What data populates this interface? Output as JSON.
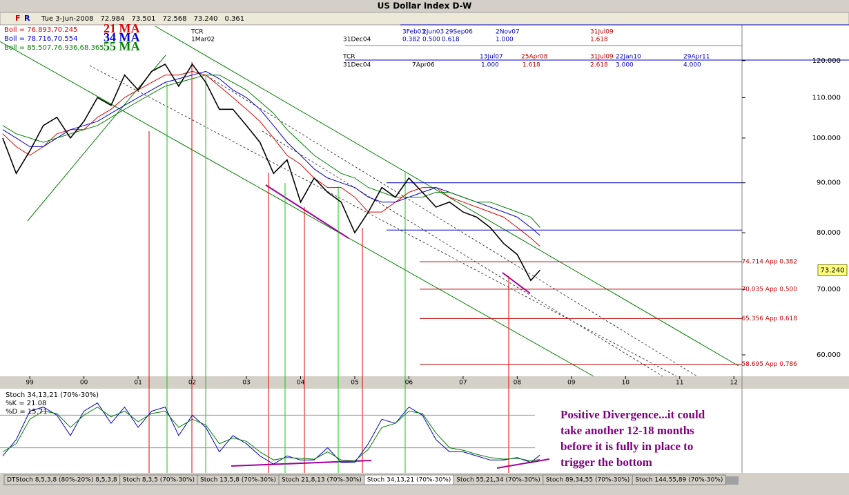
{
  "window_title": "US Dollar Index  D-W",
  "header": [
    "Tue 3-Jun-2008",
    "72.984",
    "73.501",
    "72.568",
    "73.240",
    "0.361"
  ],
  "buttons": [
    "F",
    "R"
  ],
  "tabs": [
    "DTStoch 8,5,3,8 (80%-20%) 8,5,3,8",
    "Stoch 8,3,5 (70%-30%)",
    "Stoch 13,5,8 (70%-30%)",
    "Stoch 21,8,13 (70%-30%)",
    "Stoch 34,13,21 (70%-30%)",
    "Stoch 55,21,34 (70%-30%)",
    "Stoch 89,34,55 (70%-30%)",
    "Stoch 144,55,89 (70%-30%)"
  ],
  "chart_data": [
    {
      "type": "line",
      "log_scale": true,
      "color": "#000000",
      "x": [
        1998.5,
        1998.75,
        1999,
        1999.25,
        1999.5,
        1999.75,
        2000,
        2000.25,
        2000.5,
        2000.75,
        2001,
        2001.25,
        2001.5,
        2001.75,
        2002,
        2002.25,
        2002.5,
        2002.75,
        2003,
        2003.25,
        2003.5,
        2003.75,
        2004,
        2004.25,
        2004.5,
        2004.75,
        2005,
        2005.25,
        2005.5,
        2005.75,
        2006,
        2006.25,
        2006.5,
        2006.75,
        2007,
        2007.25,
        2007.5,
        2007.75,
        2008,
        2008.25,
        2008.42
      ],
      "values": [
        100,
        92,
        97,
        103,
        105,
        100,
        104,
        110,
        108,
        116,
        112,
        117,
        119,
        113,
        119,
        114,
        107,
        107,
        103,
        99,
        92,
        95,
        86,
        91,
        88,
        86,
        80,
        84,
        89,
        87,
        91,
        88,
        85,
        86,
        84,
        83,
        81,
        78,
        76,
        71.5,
        73.24
      ],
      "series": [
        {
          "name": "21 MA",
          "boll": "Boll = 76.893,70.245",
          "color": "#e00000",
          "values": [
            101,
            98,
            96,
            98,
            101,
            102,
            102,
            105,
            107,
            110,
            112,
            114,
            116,
            116,
            117,
            116,
            113,
            110,
            107,
            104,
            100,
            96,
            94,
            91,
            89,
            89,
            87,
            84,
            84,
            86,
            88,
            89,
            89,
            87,
            86,
            85,
            84,
            83,
            81,
            79,
            77.5
          ]
        },
        {
          "name": "34 MA",
          "boll": "Boll = 78.716,70.554",
          "color": "#0000d0",
          "values": [
            102,
            100,
            98,
            98,
            100,
            102,
            103,
            104,
            106,
            108,
            110,
            112,
            114,
            115,
            116,
            117,
            115,
            112,
            110,
            107,
            103,
            99,
            96,
            93,
            91,
            90,
            89,
            87,
            86,
            86,
            87,
            88,
            89,
            88,
            87,
            86,
            85,
            84,
            83,
            81,
            79.5
          ]
        },
        {
          "name": "55 MA",
          "boll": "Boll = 85.507,76.936,68.365",
          "color": "#008000",
          "values": [
            103,
            101,
            100,
            99,
            100,
            101,
            102,
            103,
            105,
            107,
            109,
            111,
            113,
            114,
            115,
            116,
            116,
            114,
            112,
            109,
            106,
            102,
            99,
            96,
            94,
            92,
            91,
            89,
            88,
            87,
            87,
            87,
            88,
            88,
            87,
            86,
            86,
            85,
            84,
            83,
            81
          ]
        }
      ],
      "xlim": [
        1998.45,
        2012.15
      ],
      "xticks": [
        {
          "value": 1999,
          "label": "99"
        },
        {
          "value": 2000,
          "label": "00"
        },
        {
          "value": 2001,
          "label": "01"
        },
        {
          "value": 2002,
          "label": "02"
        },
        {
          "value": 2003,
          "label": "03"
        },
        {
          "value": 2004,
          "label": "04"
        },
        {
          "value": 2005,
          "label": "05"
        },
        {
          "value": 2006,
          "label": "06"
        },
        {
          "value": 2007,
          "label": "07"
        },
        {
          "value": 2008,
          "label": "08"
        },
        {
          "value": 2009,
          "label": "09"
        },
        {
          "value": 2010,
          "label": "10"
        },
        {
          "value": 2011,
          "label": "11"
        },
        {
          "value": 2012,
          "label": "12"
        }
      ],
      "ylim": [
        57.05,
        134
      ],
      "yticks": [
        {
          "value": 60,
          "label": "60.000"
        },
        {
          "value": 70,
          "label": "70.000"
        },
        {
          "value": 80,
          "label": "80.000"
        },
        {
          "value": 90,
          "label": "90.000"
        },
        {
          "value": 100,
          "label": "100.000"
        },
        {
          "value": 110,
          "label": "110.000"
        },
        {
          "value": 120,
          "label": "120.000"
        }
      ],
      "last": {
        "value": 73.24,
        "label": "73.240"
      },
      "levels": [
        {
          "value": 74.714,
          "label": "74.714 App 0.382"
        },
        {
          "value": 70.035,
          "label": "70.035 App 0.500"
        },
        {
          "value": 65.356,
          "label": "65.356 App 0.618"
        },
        {
          "value": 58.695,
          "label": "58.695 App 0.786"
        }
      ],
      "level_color": "#c00000",
      "hlines": [
        90,
        80.5
      ],
      "hline_color": "#0000c0",
      "cycle_labels": [
        {
          "text": "TCR",
          "color": "#000000"
        },
        {
          "text": "1Mar02",
          "color": "#000000"
        },
        {
          "text": "31Dec04",
          "color": "#000000"
        },
        {
          "text": "3Feb03",
          "color": "#0000c0"
        },
        {
          "text": "0.382",
          "color": "#0000c0"
        },
        {
          "text": "2Jun03",
          "color": "#0000c0"
        },
        {
          "text": "0.500",
          "color": "#0000c0"
        },
        {
          "text": "29Sep06",
          "color": "#0000c0"
        },
        {
          "text": "0.618",
          "color": "#0000c0"
        },
        {
          "text": "2Nov07",
          "color": "#0000c0"
        },
        {
          "text": "1.000",
          "color": "#0000c0"
        },
        {
          "text": "31Jul09",
          "color": "#c00000"
        },
        {
          "text": "1.618",
          "color": "#c00000"
        },
        {
          "text": "TCR",
          "color": "#000000"
        },
        {
          "text": "31Dec04",
          "color": "#000000"
        },
        {
          "text": "7Apr06",
          "color": "#000000"
        },
        {
          "text": "13Jul07",
          "color": "#0000c0"
        },
        {
          "text": "1.000",
          "color": "#0000c0"
        },
        {
          "text": "25Apr08",
          "color": "#c00000"
        },
        {
          "text": "1.618",
          "color": "#c00000"
        },
        {
          "text": "31Jul09",
          "color": "#c00000"
        },
        {
          "text": "2.618",
          "color": "#c00000"
        },
        {
          "text": "22Jan10",
          "color": "#0000c0"
        },
        {
          "text": "3.000",
          "color": "#0000c0"
        },
        {
          "text": "29Apr11",
          "color": "#0000c0"
        },
        {
          "text": "4.000",
          "color": "#0000c0"
        }
      ]
    },
    {
      "type": "line",
      "title": "Stoch 34,13,21 (70%-30%)",
      "x": [
        1998.5,
        1998.75,
        1999,
        1999.25,
        1999.5,
        1999.75,
        2000,
        2000.25,
        2000.5,
        2000.75,
        2001,
        2001.25,
        2001.5,
        2001.75,
        2002,
        2002.25,
        2002.5,
        2002.75,
        2003,
        2003.25,
        2003.5,
        2003.75,
        2004,
        2004.25,
        2004.5,
        2004.75,
        2005,
        2005.25,
        2005.5,
        2005.75,
        2006,
        2006.25,
        2006.5,
        2006.75,
        2007,
        2007.25,
        2007.5,
        2007.75,
        2008,
        2008.25,
        2008.42
      ],
      "series": [
        {
          "name": "%K = 21.08",
          "color": "#0000c0",
          "values": [
            20,
            40,
            75,
            80,
            70,
            45,
            75,
            85,
            60,
            80,
            55,
            75,
            80,
            45,
            70,
            55,
            25,
            45,
            35,
            20,
            10,
            20,
            15,
            15,
            30,
            12,
            12,
            35,
            65,
            60,
            80,
            70,
            40,
            25,
            25,
            20,
            15,
            15,
            18,
            12,
            21.08
          ]
        },
        {
          "name": "%D = 15.71",
          "color": "#008000",
          "values": [
            25,
            35,
            65,
            75,
            72,
            55,
            70,
            80,
            68,
            75,
            62,
            72,
            75,
            55,
            65,
            58,
            35,
            42,
            38,
            25,
            15,
            18,
            17,
            16,
            25,
            15,
            14,
            28,
            55,
            60,
            75,
            72,
            48,
            30,
            27,
            22,
            18,
            16,
            17,
            14,
            15.71
          ]
        }
      ],
      "xlim": [
        1998.45,
        2012.15
      ],
      "ylim": [
        0,
        100
      ],
      "hlines": [
        70,
        30
      ],
      "annotation": [
        "Positive Divergence...it could",
        "take another 12-18 months",
        "before it is fully in place to",
        "trigger the bottom"
      ],
      "annotation_color": "#800080"
    }
  ]
}
